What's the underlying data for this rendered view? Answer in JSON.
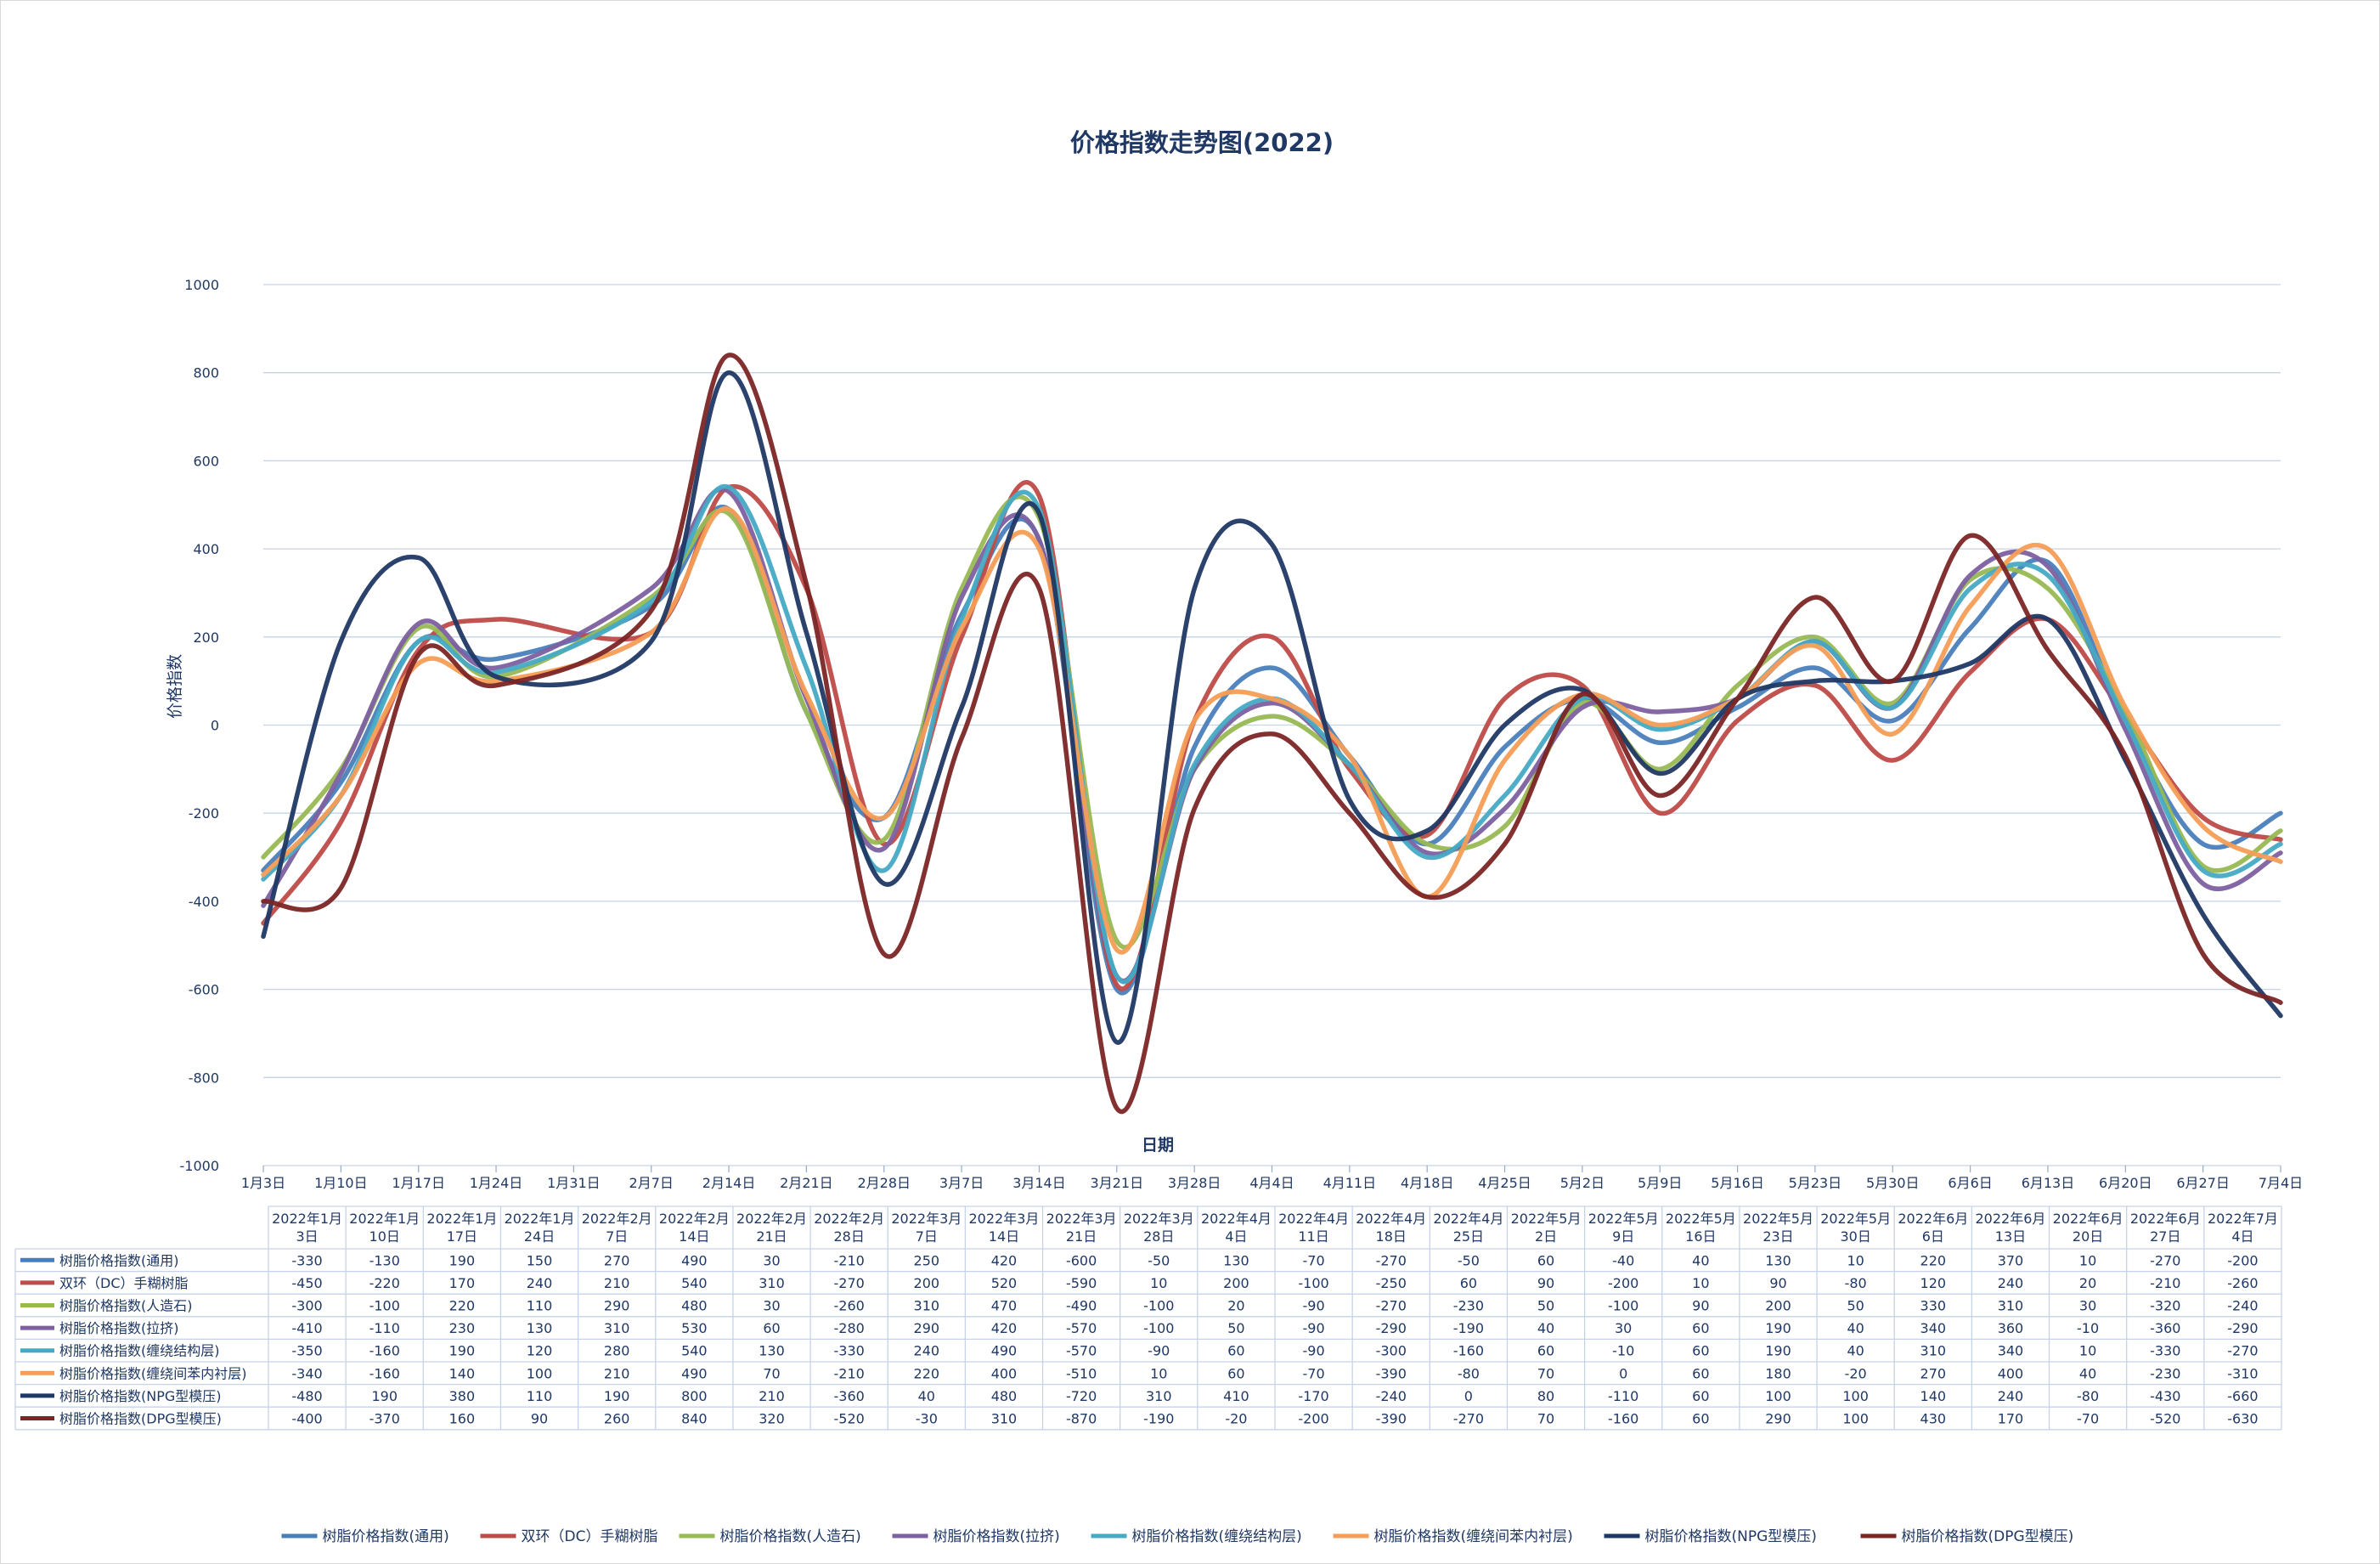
{
  "chart_data": {
    "type": "line",
    "title": "价格指数走势图(2022)",
    "xlabel": "日期",
    "ylabel": "价格指数",
    "ylim": [
      -1000,
      1000
    ],
    "ytick_step": 200,
    "grid": true,
    "legend_position": "bottom",
    "x_tick_labels": [
      "1月3日",
      "1月10日",
      "1月17日",
      "1月24日",
      "1月31日",
      "2月7日",
      "2月14日",
      "2月21日",
      "2月28日",
      "3月7日",
      "3月14日",
      "3月21日",
      "3月28日",
      "4月4日",
      "4月11日",
      "4月18日",
      "4月25日",
      "5月2日",
      "5月9日",
      "5月16日",
      "5月23日",
      "5月30日",
      "6月6日",
      "6月13日",
      "6月20日",
      "6月27日",
      "7月4日"
    ],
    "categories": [
      {
        "line1": "2022年1月",
        "line2": "3日"
      },
      {
        "line1": "2022年1月",
        "line2": "10日"
      },
      {
        "line1": "2022年1月",
        "line2": "17日"
      },
      {
        "line1": "2022年1月",
        "line2": "24日"
      },
      {
        "line1": "2022年2月",
        "line2": "7日"
      },
      {
        "line1": "2022年2月",
        "line2": "14日"
      },
      {
        "line1": "2022年2月",
        "line2": "21日"
      },
      {
        "line1": "2022年2月",
        "line2": "28日"
      },
      {
        "line1": "2022年3月",
        "line2": "7日"
      },
      {
        "line1": "2022年3月",
        "line2": "14日"
      },
      {
        "line1": "2022年3月",
        "line2": "21日"
      },
      {
        "line1": "2022年3月",
        "line2": "28日"
      },
      {
        "line1": "2022年4月",
        "line2": "4日"
      },
      {
        "line1": "2022年4月",
        "line2": "11日"
      },
      {
        "line1": "2022年4月",
        "line2": "18日"
      },
      {
        "line1": "2022年4月",
        "line2": "25日"
      },
      {
        "line1": "2022年5月",
        "line2": "2日"
      },
      {
        "line1": "2022年5月",
        "line2": "9日"
      },
      {
        "line1": "2022年5月",
        "line2": "16日"
      },
      {
        "line1": "2022年5月",
        "line2": "23日"
      },
      {
        "line1": "2022年5月",
        "line2": "30日"
      },
      {
        "line1": "2022年6月",
        "line2": "6日"
      },
      {
        "line1": "2022年6月",
        "line2": "13日"
      },
      {
        "line1": "2022年6月",
        "line2": "20日"
      },
      {
        "line1": "2022年6月",
        "line2": "27日"
      },
      {
        "line1": "2022年7月",
        "line2": "4日"
      }
    ],
    "x_days": [
      0,
      7,
      14,
      21,
      35,
      42,
      49,
      56,
      63,
      70,
      77,
      84,
      91,
      98,
      105,
      112,
      119,
      126,
      133,
      140,
      147,
      154,
      161,
      168,
      175,
      182
    ],
    "series": [
      {
        "name": "树脂价格指数(通用)",
        "color": "#4a7ebb",
        "values": [
          -330,
          -130,
          190,
          150,
          270,
          490,
          30,
          -210,
          250,
          420,
          -600,
          -50,
          130,
          -70,
          -270,
          -50,
          60,
          -40,
          40,
          130,
          10,
          220,
          370,
          10,
          -270,
          -200
        ]
      },
      {
        "name": "双环（DC）手糊树脂",
        "color": "#be4b48",
        "values": [
          -450,
          -220,
          170,
          240,
          210,
          540,
          310,
          -270,
          200,
          520,
          -590,
          10,
          200,
          -100,
          -250,
          60,
          90,
          -200,
          10,
          90,
          -80,
          120,
          240,
          20,
          -210,
          -260
        ]
      },
      {
        "name": "树脂价格指数(人造石)",
        "color": "#98b954",
        "values": [
          -300,
          -100,
          220,
          110,
          290,
          480,
          30,
          -260,
          310,
          470,
          -490,
          -100,
          20,
          -90,
          -270,
          -230,
          50,
          -100,
          90,
          200,
          50,
          330,
          310,
          30,
          -320,
          -240
        ]
      },
      {
        "name": "树脂价格指数(拉挤)",
        "color": "#7d60a0",
        "values": [
          -410,
          -110,
          230,
          130,
          310,
          530,
          60,
          -280,
          290,
          420,
          -570,
          -100,
          50,
          -90,
          -290,
          -190,
          40,
          30,
          60,
          190,
          40,
          340,
          360,
          -10,
          -360,
          -290
        ]
      },
      {
        "name": "树脂价格指数(缠绕结构层)",
        "color": "#46aac4",
        "values": [
          -350,
          -160,
          190,
          120,
          280,
          540,
          130,
          -330,
          240,
          490,
          -570,
          -90,
          60,
          -90,
          -300,
          -160,
          60,
          -10,
          60,
          190,
          40,
          310,
          340,
          10,
          -330,
          -270
        ]
      },
      {
        "name": "树脂价格指数(缠绕间苯内衬层)",
        "color": "#f59d56",
        "values": [
          -340,
          -160,
          140,
          100,
          210,
          490,
          70,
          -210,
          220,
          400,
          -510,
          10,
          60,
          -70,
          -390,
          -80,
          70,
          0,
          60,
          180,
          -20,
          270,
          400,
          40,
          -230,
          -310
        ]
      },
      {
        "name": "树脂价格指数(NPG型模压)",
        "color": "#1f3864",
        "values": [
          -480,
          190,
          380,
          110,
          190,
          800,
          210,
          -360,
          40,
          480,
          -720,
          310,
          410,
          -170,
          -240,
          0,
          80,
          -110,
          60,
          100,
          100,
          140,
          240,
          -80,
          -430,
          -660
        ]
      },
      {
        "name": "树脂价格指数(DPG型模压)",
        "color": "#7b2525",
        "values": [
          -400,
          -370,
          160,
          90,
          260,
          840,
          320,
          -520,
          -30,
          310,
          -870,
          -190,
          -20,
          -200,
          -390,
          -270,
          70,
          -160,
          60,
          290,
          100,
          430,
          170,
          -70,
          -520,
          -630
        ]
      }
    ]
  }
}
